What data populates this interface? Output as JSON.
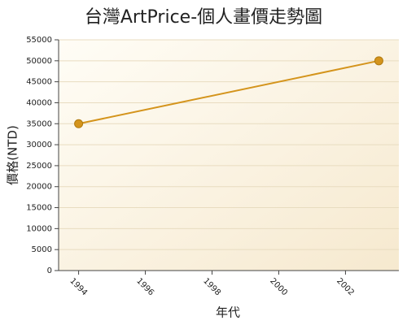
{
  "chart_data": {
    "type": "line",
    "title": "台灣ArtPrice-個人畫價走勢圖",
    "x_label": "年代",
    "y_label": "價格(NTD)",
    "series": [
      {
        "name": "價格",
        "color": "#d4941c",
        "x": [
          1994,
          2003
        ],
        "values": [
          35000,
          50000
        ]
      }
    ],
    "xlim": [
      1993.4,
      2003.6
    ],
    "xticks": [
      1994,
      1996,
      1998,
      2000,
      2002
    ],
    "ylim": [
      0,
      55000
    ],
    "yticks": [
      0,
      5000,
      10000,
      15000,
      20000,
      25000,
      30000,
      35000,
      40000,
      45000,
      50000,
      55000
    ],
    "grid": true
  }
}
